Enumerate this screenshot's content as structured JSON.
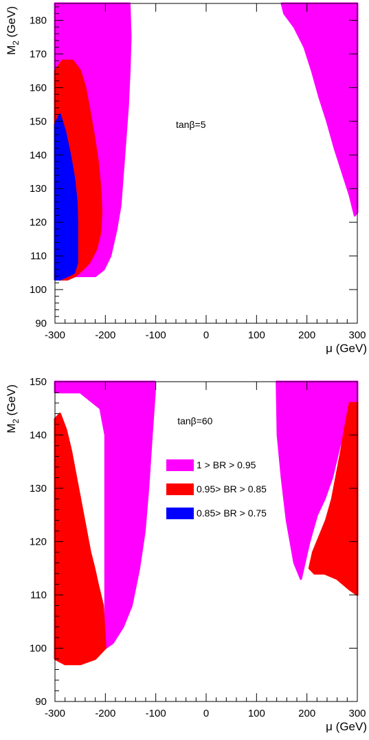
{
  "chart_data": [
    {
      "type": "area",
      "xlabel": "μ (GeV)",
      "ylabel_main": "M",
      "ylabel_sub": "2",
      "ylabel_unit": " (GeV)",
      "xlim": [
        -300,
        300
      ],
      "ylim": [
        90,
        185
      ],
      "xticks": [
        "-300",
        "-200",
        "-100",
        "0",
        "100",
        "200",
        "300"
      ],
      "xtick_values": [
        -300,
        -200,
        -100,
        0,
        100,
        200,
        300
      ],
      "yticks": [
        "90",
        "100",
        "110",
        "120",
        "130",
        "140",
        "150",
        "160",
        "170",
        "180"
      ],
      "ytick_values": [
        90,
        100,
        110,
        120,
        130,
        140,
        150,
        160,
        170,
        180
      ],
      "annotation": "tanβ=5",
      "annotation_pos": {
        "x": -60,
        "y": 148
      },
      "regions": [
        {
          "name": "1   > BR > 0.95",
          "color": "#ff00ff",
          "polygon": [
            [
              -300,
              185
            ],
            [
              -200,
              185
            ],
            [
              -152,
              185
            ],
            [
              -150,
              175
            ],
            [
              -152,
              165
            ],
            [
              -155,
              155
            ],
            [
              -160,
              145
            ],
            [
              -165,
              135
            ],
            [
              -170,
              125
            ],
            [
              -178,
              118
            ],
            [
              -190,
              110
            ],
            [
              -203,
              106
            ],
            [
              -220,
              104
            ],
            [
              -300,
              104
            ]
          ]
        },
        {
          "name": "1   > BR > 0.95",
          "color": "#ff00ff",
          "polygon": [
            [
              150,
              185
            ],
            [
              200,
              185
            ],
            [
              300,
              185
            ],
            [
              300,
              123
            ],
            [
              295,
              122
            ],
            [
              285,
              128
            ],
            [
              270,
              135
            ],
            [
              255,
              142
            ],
            [
              240,
              150
            ],
            [
              225,
              157
            ],
            [
              210,
              165
            ],
            [
              195,
              172
            ],
            [
              175,
              178
            ],
            [
              155,
              182
            ]
          ]
        },
        {
          "name": "0.95> BR > 0.85",
          "color": "#ff0000",
          "polygon": [
            [
              -300,
              106
            ],
            [
              -300,
              165
            ],
            [
              -285,
              168
            ],
            [
              -265,
              168
            ],
            [
              -250,
              165
            ],
            [
              -240,
              160
            ],
            [
              -230,
              152
            ],
            [
              -222,
              145
            ],
            [
              -215,
              138
            ],
            [
              -210,
              130
            ],
            [
              -208,
              123
            ],
            [
              -210,
              117
            ],
            [
              -218,
              112
            ],
            [
              -232,
              108
            ],
            [
              -245,
              106
            ],
            [
              -260,
              104
            ],
            [
              -275,
              103
            ],
            [
              -290,
              103
            ]
          ]
        },
        {
          "name": "0.85> BR > 0.75",
          "color": "#0000ff",
          "polygon": [
            [
              -300,
              103
            ],
            [
              -300,
              149
            ],
            [
              -290,
              152
            ],
            [
              -280,
              147
            ],
            [
              -270,
              140
            ],
            [
              -262,
              133
            ],
            [
              -257,
              126
            ],
            [
              -256,
              120
            ],
            [
              -256,
              108
            ],
            [
              -262,
              105
            ],
            [
              -275,
              104
            ],
            [
              -290,
              103
            ]
          ]
        }
      ]
    },
    {
      "type": "area",
      "xlabel": "μ (GeV)",
      "ylabel_main": "M",
      "ylabel_sub": "2",
      "ylabel_unit": " (GeV)",
      "xlim": [
        -300,
        300
      ],
      "ylim": [
        90,
        150
      ],
      "xticks": [
        "-300",
        "-200",
        "-100",
        "0",
        "100",
        "200",
        "300"
      ],
      "xtick_values": [
        -300,
        -200,
        -100,
        0,
        100,
        200,
        300
      ],
      "yticks": [
        "90",
        "100",
        "110",
        "120",
        "130",
        "140",
        "150"
      ],
      "ytick_values": [
        90,
        100,
        110,
        120,
        130,
        140,
        150
      ],
      "annotation": "tanβ=60",
      "annotation_pos": {
        "x": -57,
        "y": 142
      },
      "regions": [
        {
          "name": "1   > BR > 0.95",
          "color": "#ff00ff",
          "polygon": [
            [
              -300,
              150
            ],
            [
              -200,
              150
            ],
            [
              -102,
              150
            ],
            [
              -102,
              148
            ],
            [
              -108,
              140
            ],
            [
              -115,
              130
            ],
            [
              -122,
              122
            ],
            [
              -133,
              115
            ],
            [
              -148,
              108
            ],
            [
              -165,
              104
            ],
            [
              -185,
              101
            ],
            [
              -200,
              100
            ],
            [
              -200,
              140
            ],
            [
              -210,
              145
            ],
            [
              -250,
              148
            ],
            [
              -300,
              148
            ]
          ]
        },
        {
          "name": "0.95> BR > 0.85",
          "color": "#ff0000",
          "polygon": [
            [
              -300,
              98
            ],
            [
              -300,
              143
            ],
            [
              -290,
              144
            ],
            [
              -278,
              141
            ],
            [
              -268,
              137
            ],
            [
              -258,
              132
            ],
            [
              -250,
              128
            ],
            [
              -240,
              123
            ],
            [
              -230,
              118
            ],
            [
              -222,
              115
            ],
            [
              -215,
              112
            ],
            [
              -205,
              108
            ],
            [
              -200,
              100
            ],
            [
              -220,
              98
            ],
            [
              -250,
              97
            ],
            [
              -280,
              97
            ]
          ]
        },
        {
          "name": "1   > BR > 0.95",
          "color": "#ff00ff",
          "polygon": [
            [
              140,
              150
            ],
            [
              200,
              150
            ],
            [
              300,
              150
            ],
            [
              300,
              144
            ],
            [
              280,
              142
            ],
            [
              265,
              138
            ],
            [
              250,
              132
            ],
            [
              235,
              128
            ],
            [
              220,
              125
            ],
            [
              205,
              120
            ],
            [
              188,
              113
            ],
            [
              175,
              116
            ],
            [
              160,
              124
            ],
            [
              150,
              132
            ],
            [
              142,
              140
            ]
          ]
        },
        {
          "name": "0.95> BR > 0.85",
          "color": "#ff0000",
          "polygon": [
            [
              300,
              110
            ],
            [
              300,
              146
            ],
            [
              285,
              146
            ],
            [
              275,
              141
            ],
            [
              268,
              137
            ],
            [
              262,
              134
            ],
            [
              250,
              128
            ],
            [
              238,
              124
            ],
            [
              225,
              121
            ],
            [
              212,
              118
            ],
            [
              205,
              115
            ],
            [
              215,
              114
            ],
            [
              235,
              114
            ],
            [
              260,
              113
            ],
            [
              285,
              111
            ]
          ]
        }
      ],
      "legend": [
        {
          "label": "1   > BR > 0.95",
          "color": "#ff00ff"
        },
        {
          "label": "0.95> BR > 0.85",
          "color": "#ff0000"
        },
        {
          "label": "0.85> BR > 0.75",
          "color": "#0000ff"
        }
      ]
    }
  ]
}
